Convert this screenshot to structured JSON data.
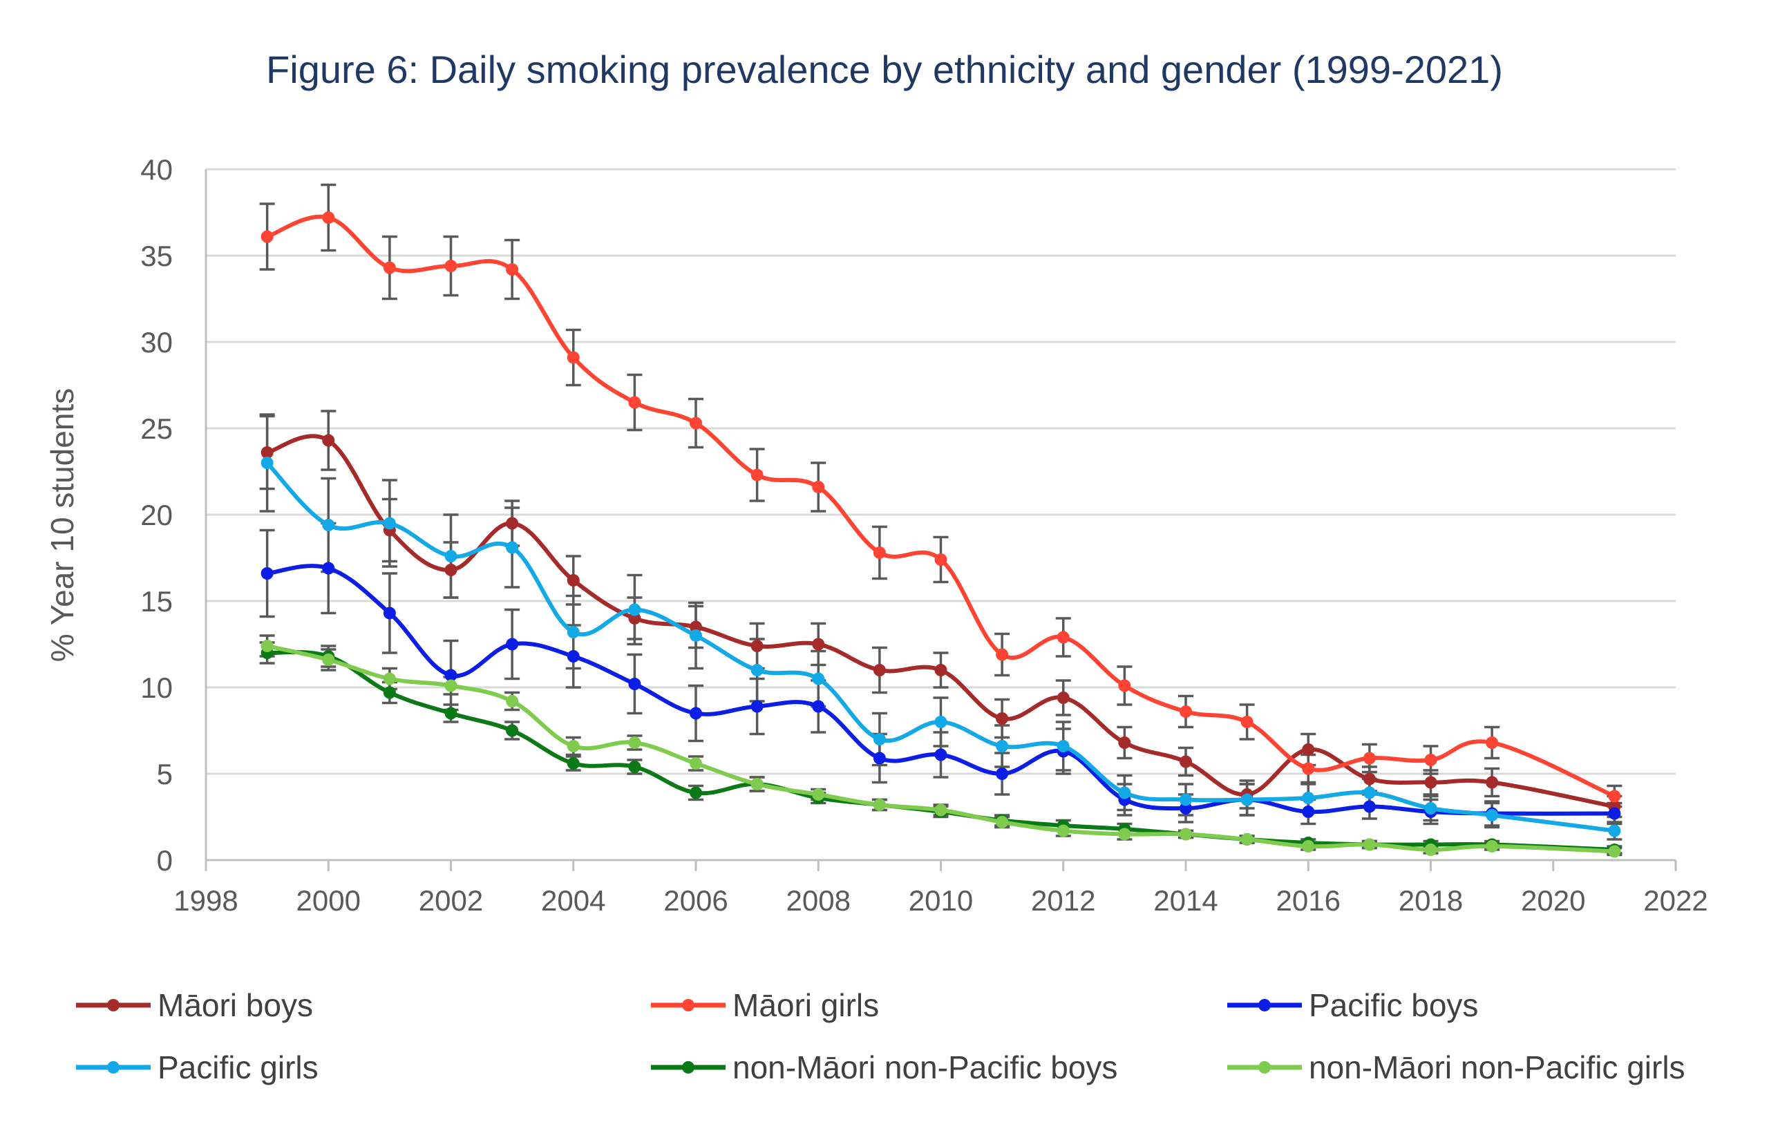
{
  "chart_data": {
    "type": "line",
    "title": "Figure 6: Daily smoking prevalence by ethnicity and gender (1999-2021)",
    "xlabel": "",
    "ylabel": "% Year 10 students",
    "xlim": [
      1998,
      2022
    ],
    "ylim": [
      0,
      40
    ],
    "x_ticks": [
      1998,
      2000,
      2002,
      2004,
      2006,
      2008,
      2010,
      2012,
      2014,
      2016,
      2018,
      2020,
      2022
    ],
    "y_ticks": [
      0,
      5,
      10,
      15,
      20,
      25,
      30,
      35,
      40
    ],
    "grid": true,
    "legend": "bottom",
    "series": [
      {
        "name": "Māori boys",
        "color": "#a52a2a",
        "x": [
          1999,
          2000,
          2001,
          2002,
          2003,
          2004,
          2005,
          2006,
          2007,
          2008,
          2009,
          2010,
          2011,
          2012,
          2013,
          2014,
          2015,
          2016,
          2017,
          2018,
          2019,
          2021
        ],
        "values": [
          23.6,
          24.3,
          19.1,
          16.8,
          19.5,
          16.2,
          14.0,
          13.5,
          12.4,
          12.5,
          11.0,
          11.0,
          8.2,
          9.4,
          6.8,
          5.7,
          3.8,
          6.4,
          4.7,
          4.5,
          4.5,
          3.1
        ],
        "err": [
          2.1,
          1.7,
          1.8,
          1.6,
          1.3,
          1.4,
          1.2,
          1.2,
          1.3,
          1.2,
          1.3,
          1.0,
          1.1,
          1.0,
          0.9,
          0.8,
          0.8,
          0.9,
          0.7,
          0.7,
          0.8,
          0.6
        ]
      },
      {
        "name": "Māori girls",
        "color": "#ff4433",
        "x": [
          1999,
          2000,
          2001,
          2002,
          2003,
          2004,
          2005,
          2006,
          2007,
          2008,
          2009,
          2010,
          2011,
          2012,
          2013,
          2014,
          2015,
          2016,
          2017,
          2018,
          2019,
          2021
        ],
        "values": [
          36.1,
          37.2,
          34.3,
          34.4,
          34.2,
          29.1,
          26.5,
          25.3,
          22.3,
          21.6,
          17.8,
          17.4,
          11.9,
          12.9,
          10.1,
          8.6,
          8.0,
          5.3,
          5.9,
          5.8,
          6.8,
          3.7
        ],
        "err": [
          1.9,
          1.9,
          1.8,
          1.7,
          1.7,
          1.6,
          1.6,
          1.4,
          1.5,
          1.4,
          1.5,
          1.3,
          1.2,
          1.1,
          1.1,
          0.9,
          1.0,
          0.8,
          0.8,
          0.8,
          0.9,
          0.6
        ]
      },
      {
        "name": "Pacific boys",
        "color": "#0a1ee6",
        "x": [
          1999,
          2000,
          2001,
          2002,
          2003,
          2004,
          2005,
          2006,
          2007,
          2008,
          2009,
          2010,
          2011,
          2012,
          2013,
          2014,
          2015,
          2016,
          2017,
          2018,
          2019,
          2021
        ],
        "values": [
          16.6,
          16.9,
          14.3,
          10.7,
          12.5,
          11.8,
          10.2,
          8.5,
          8.9,
          8.9,
          5.9,
          6.1,
          5.0,
          6.3,
          3.5,
          3.0,
          3.5,
          2.8,
          3.1,
          2.8,
          2.7,
          2.7
        ],
        "err": [
          2.5,
          2.6,
          2.3,
          2.0,
          2.0,
          1.8,
          1.7,
          1.6,
          1.6,
          1.5,
          1.4,
          1.3,
          1.2,
          1.3,
          0.9,
          0.8,
          0.9,
          0.7,
          0.7,
          0.7,
          0.7,
          0.6
        ]
      },
      {
        "name": "Pacific girls",
        "color": "#13a9e6",
        "x": [
          1999,
          2000,
          2001,
          2002,
          2003,
          2004,
          2005,
          2006,
          2007,
          2008,
          2009,
          2010,
          2011,
          2012,
          2013,
          2014,
          2015,
          2016,
          2017,
          2018,
          2019,
          2021
        ],
        "values": [
          23.0,
          19.4,
          19.5,
          17.6,
          18.1,
          13.2,
          14.5,
          13.0,
          11.0,
          10.5,
          7.0,
          8.0,
          6.6,
          6.6,
          3.9,
          3.5,
          3.5,
          3.6,
          3.9,
          3.0,
          2.6,
          1.7
        ],
        "err": [
          2.8,
          2.7,
          2.5,
          2.4,
          2.3,
          2.1,
          2.0,
          1.9,
          1.8,
          1.6,
          1.5,
          1.4,
          1.2,
          1.4,
          1.0,
          0.9,
          0.9,
          0.8,
          0.8,
          0.7,
          0.7,
          0.5
        ]
      },
      {
        "name": "non-Māori non-Pacific boys",
        "color": "#0b7a16",
        "x": [
          1999,
          2000,
          2001,
          2002,
          2003,
          2004,
          2005,
          2006,
          2007,
          2008,
          2009,
          2010,
          2011,
          2012,
          2013,
          2014,
          2015,
          2016,
          2017,
          2018,
          2019,
          2021
        ],
        "values": [
          12.0,
          11.8,
          9.7,
          8.5,
          7.5,
          5.6,
          5.4,
          3.9,
          4.4,
          3.6,
          3.2,
          2.8,
          2.3,
          2.0,
          1.8,
          1.5,
          1.2,
          1.0,
          0.9,
          0.9,
          0.9,
          0.6
        ],
        "err": [
          0.6,
          0.6,
          0.6,
          0.5,
          0.5,
          0.4,
          0.4,
          0.4,
          0.4,
          0.3,
          0.3,
          0.3,
          0.3,
          0.3,
          0.3,
          0.2,
          0.2,
          0.2,
          0.2,
          0.2,
          0.2,
          0.2
        ]
      },
      {
        "name": "non-Māori non-Pacific girls",
        "color": "#7ecb4e",
        "x": [
          1999,
          2000,
          2001,
          2002,
          2003,
          2004,
          2005,
          2006,
          2007,
          2008,
          2009,
          2010,
          2011,
          2012,
          2013,
          2014,
          2015,
          2016,
          2017,
          2018,
          2019,
          2021
        ],
        "values": [
          12.4,
          11.6,
          10.5,
          10.1,
          9.2,
          6.6,
          6.8,
          5.6,
          4.4,
          3.8,
          3.2,
          2.9,
          2.2,
          1.7,
          1.5,
          1.5,
          1.2,
          0.8,
          0.9,
          0.6,
          0.8,
          0.5
        ],
        "err": [
          0.6,
          0.6,
          0.6,
          0.5,
          0.5,
          0.5,
          0.4,
          0.4,
          0.4,
          0.3,
          0.3,
          0.3,
          0.3,
          0.3,
          0.3,
          0.2,
          0.2,
          0.2,
          0.2,
          0.2,
          0.2,
          0.2
        ]
      }
    ]
  }
}
